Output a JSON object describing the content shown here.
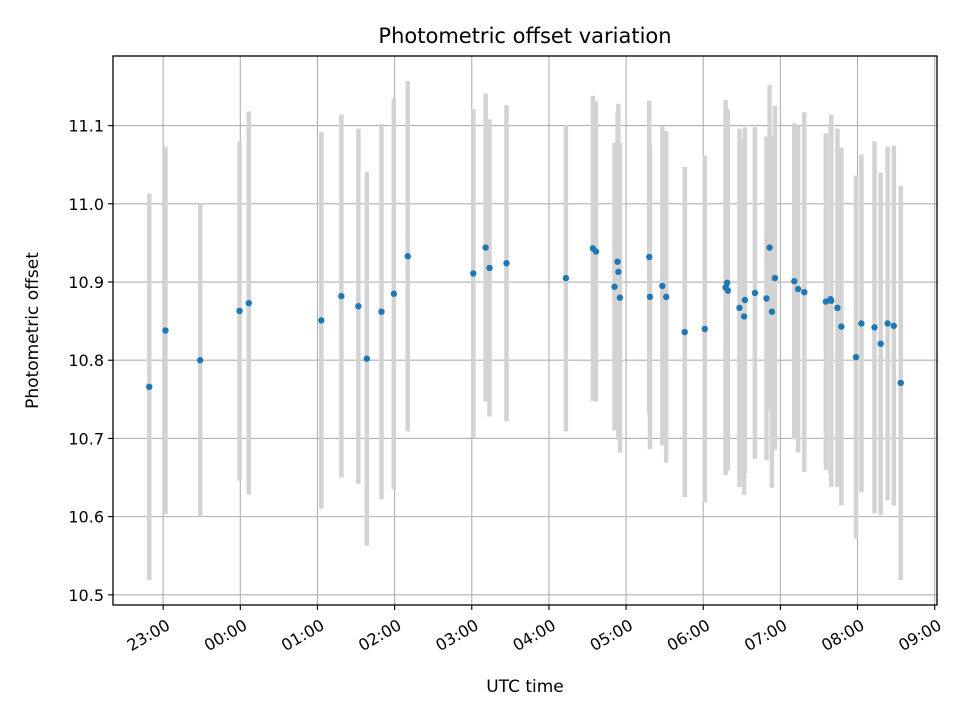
{
  "chart_data": {
    "type": "scatter",
    "title": "Photometric offset variation",
    "xlabel": "UTC time",
    "ylabel": "Photometric offset",
    "y_ticks": [
      "10.5",
      "10.6",
      "10.7",
      "10.8",
      "10.9",
      "11.0",
      "11.1"
    ],
    "x_ticks": [
      "23:00",
      "00:00",
      "01:00",
      "02:00",
      "03:00",
      "04:00",
      "05:00",
      "06:00",
      "07:00",
      "08:00",
      "09:00"
    ],
    "x_tick_hours": [
      23,
      24,
      25,
      26,
      27,
      28,
      29,
      30,
      31,
      32,
      33
    ],
    "xlim_hours": [
      22.35,
      33.03
    ],
    "ylim": [
      10.487,
      11.189
    ],
    "grid": true,
    "colors": {
      "marker": "#1f77b4",
      "errorbar": "#d3d3d3",
      "grid": "#b0b0b0",
      "axes": "#000000"
    },
    "series": [
      {
        "x_hours": [
          22.82,
          23.03,
          23.48,
          23.99,
          24.11,
          25.05,
          25.31,
          25.53,
          25.64,
          25.83,
          25.99,
          26.17,
          27.02,
          27.18,
          27.23,
          27.45,
          28.22,
          28.57,
          28.61,
          28.85,
          28.89,
          28.9,
          28.92,
          29.3,
          29.31,
          29.47,
          29.52,
          29.76,
          30.02,
          30.29,
          30.31,
          30.32,
          30.47,
          30.53,
          30.54,
          30.67,
          30.82,
          30.86,
          30.89,
          30.93,
          31.18,
          31.23,
          31.31,
          31.59,
          31.65,
          31.66,
          31.74,
          31.79,
          31.98,
          32.05,
          32.22,
          32.3,
          32.39,
          32.47,
          32.56
        ],
        "y": [
          10.766,
          10.838,
          10.8,
          10.863,
          10.873,
          10.851,
          10.882,
          10.869,
          10.802,
          10.862,
          10.885,
          10.933,
          10.911,
          10.944,
          10.918,
          10.924,
          10.905,
          10.943,
          10.939,
          10.894,
          10.926,
          10.913,
          10.88,
          10.932,
          10.881,
          10.895,
          10.881,
          10.836,
          10.84,
          10.893,
          10.899,
          10.889,
          10.867,
          10.856,
          10.877,
          10.886,
          10.879,
          10.944,
          10.862,
          10.905,
          10.901,
          10.891,
          10.887,
          10.875,
          10.878,
          10.876,
          10.867,
          10.843,
          10.804,
          10.847,
          10.842,
          10.821,
          10.847,
          10.844,
          10.771
        ],
        "yerr": [
          0.247,
          0.235,
          0.2,
          0.217,
          0.245,
          0.241,
          0.232,
          0.227,
          0.239,
          0.24,
          0.25,
          0.224,
          0.21,
          0.197,
          0.19,
          0.202,
          0.196,
          0.195,
          0.192,
          0.184,
          0.191,
          0.215,
          0.198,
          0.2,
          0.195,
          0.204,
          0.212,
          0.211,
          0.222,
          0.24,
          0.222,
          0.23,
          0.229,
          0.228,
          0.221,
          0.212,
          0.207,
          0.208,
          0.225,
          0.22,
          0.202,
          0.209,
          0.23,
          0.215,
          0.224,
          0.238,
          0.229,
          0.229,
          0.232,
          0.216,
          0.238,
          0.219,
          0.226,
          0.23,
          0.252
        ]
      }
    ]
  }
}
